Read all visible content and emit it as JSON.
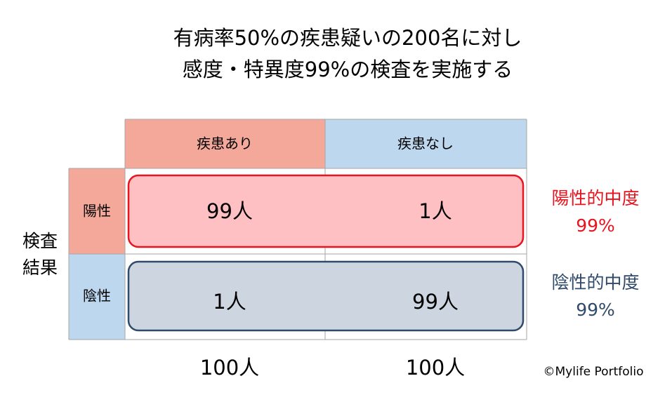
{
  "title": [
    "有病率50%の疾患疑いの200名に対し",
    "感度・特異度99%の検査を実施する"
  ],
  "table": {
    "columns": [
      "疾患あり",
      "疾患なし"
    ],
    "row_group_label": [
      "検査",
      "結果"
    ],
    "rows": [
      {
        "label": "陽性",
        "cells": [
          "99人",
          "1人"
        ]
      },
      {
        "label": "陰性",
        "cells": [
          "1人",
          "99人"
        ]
      }
    ],
    "totals": [
      "100人",
      "100人"
    ]
  },
  "predictive_values": [
    {
      "label": "陽性的中度",
      "value": "99%"
    },
    {
      "label": "陰性的中度",
      "value": "99%"
    }
  ],
  "copyright": "©Mylife Portfolio"
}
